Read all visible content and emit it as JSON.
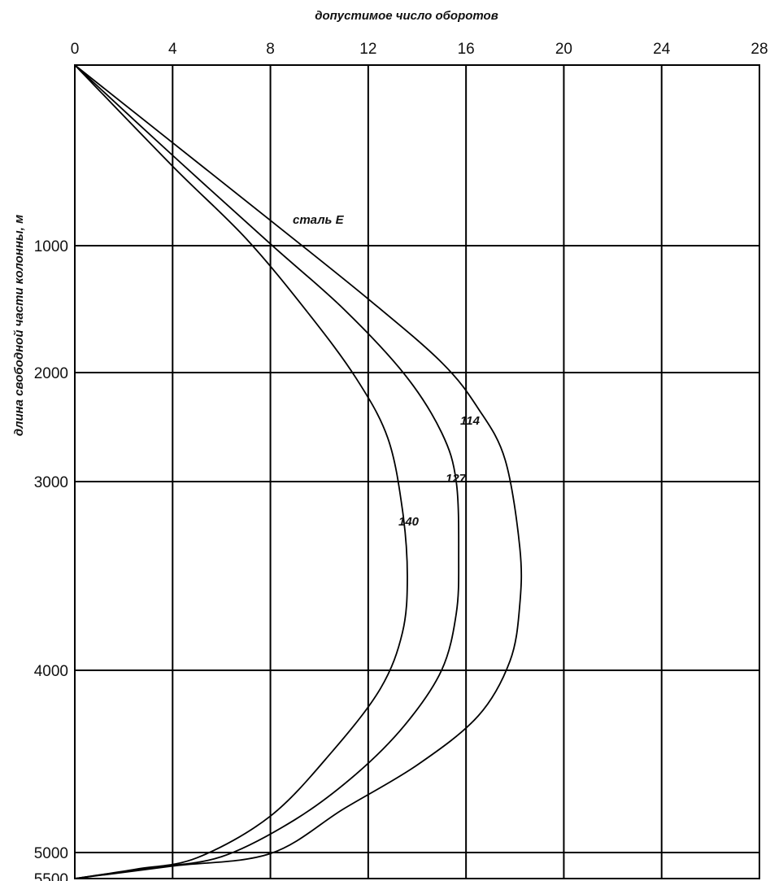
{
  "chart_data": {
    "type": "line",
    "title": "",
    "xlabel": "допустимое число оборотов",
    "ylabel": "длина свободной части колонны, м",
    "x_ticks": [
      "0",
      "4",
      "8",
      "12",
      "16",
      "20",
      "24",
      "28"
    ],
    "y_ticks": [
      "1000",
      "2000",
      "3000",
      "4000",
      "5000",
      "5500"
    ],
    "xlim": [
      0,
      28
    ],
    "ylim": [
      0,
      5500
    ],
    "y_inverted": true,
    "x_axis_position": "top",
    "grid": true,
    "annotation": "сталь Е",
    "series": [
      {
        "name": "114",
        "points": [
          [
            0,
            0
          ],
          [
            4,
            430
          ],
          [
            8,
            860
          ],
          [
            12,
            1420
          ],
          [
            15,
            1920
          ],
          [
            16.5,
            2330
          ],
          [
            17.6,
            2800
          ],
          [
            18.2,
            3350
          ],
          [
            18.2,
            3650
          ],
          [
            17.8,
            3950
          ],
          [
            16.5,
            4250
          ],
          [
            14,
            4520
          ],
          [
            11,
            4760
          ],
          [
            8,
            5020
          ],
          [
            4,
            5260
          ],
          [
            0,
            5500
          ]
        ]
      },
      {
        "name": "127",
        "points": [
          [
            0,
            0
          ],
          [
            4,
            500
          ],
          [
            8,
            990
          ],
          [
            11,
            1500
          ],
          [
            13.5,
            2020
          ],
          [
            15,
            2550
          ],
          [
            15.6,
            3000
          ],
          [
            15.7,
            3400
          ],
          [
            15.6,
            3700
          ],
          [
            15,
            4000
          ],
          [
            13.5,
            4300
          ],
          [
            11.5,
            4570
          ],
          [
            9,
            4820
          ],
          [
            6,
            5080
          ],
          [
            3,
            5300
          ],
          [
            0,
            5500
          ]
        ]
      },
      {
        "name": "140",
        "points": [
          [
            0,
            0
          ],
          [
            4,
            560
          ],
          [
            7,
            960
          ],
          [
            9.5,
            1520
          ],
          [
            11.5,
            2050
          ],
          [
            12.8,
            2600
          ],
          [
            13.4,
            3150
          ],
          [
            13.6,
            3500
          ],
          [
            13.4,
            3800
          ],
          [
            12.5,
            4100
          ],
          [
            10.5,
            4450
          ],
          [
            8,
            4800
          ],
          [
            5,
            5100
          ],
          [
            2.5,
            5320
          ],
          [
            0,
            5500
          ]
        ]
      }
    ]
  }
}
